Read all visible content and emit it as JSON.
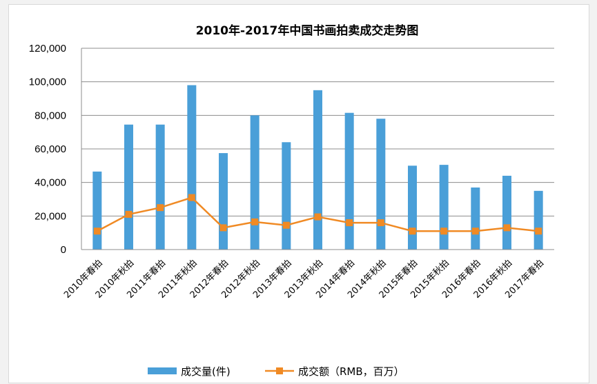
{
  "chart_data": {
    "type": "bar",
    "title": "2010年-2017年中国书画拍卖成交走势图",
    "categories": [
      "2010年春拍",
      "2010年秋拍",
      "2011年春拍",
      "2011年秋拍",
      "2012年春拍",
      "2012年秋拍",
      "2013年春拍",
      "2013年秋拍",
      "2014年春拍",
      "2014年秋拍",
      "2015年春拍",
      "2015年秋拍",
      "2016年春拍",
      "2016年秋拍",
      "2017年春拍"
    ],
    "ylim": [
      0,
      120000
    ],
    "yticks": [
      0,
      20000,
      40000,
      60000,
      80000,
      100000,
      120000
    ],
    "ytick_labels": [
      "0",
      "20,000",
      "40,000",
      "60,000",
      "80,000",
      "100,000",
      "120,000"
    ],
    "grid": true,
    "legend_position": "bottom",
    "series": [
      {
        "name": "成交量(件)",
        "type": "bar",
        "color": "#4a9fd8",
        "values": [
          46500,
          74500,
          74500,
          98000,
          57500,
          80000,
          64000,
          95000,
          81500,
          78000,
          50000,
          50500,
          37000,
          44000,
          35000
        ]
      },
      {
        "name": "成交额（RMB，百万）",
        "type": "line",
        "color": "#f08a24",
        "values": [
          11000,
          21000,
          25000,
          31000,
          13000,
          16500,
          14500,
          19500,
          16000,
          16000,
          11000,
          11000,
          11000,
          13000,
          11000
        ]
      }
    ]
  }
}
